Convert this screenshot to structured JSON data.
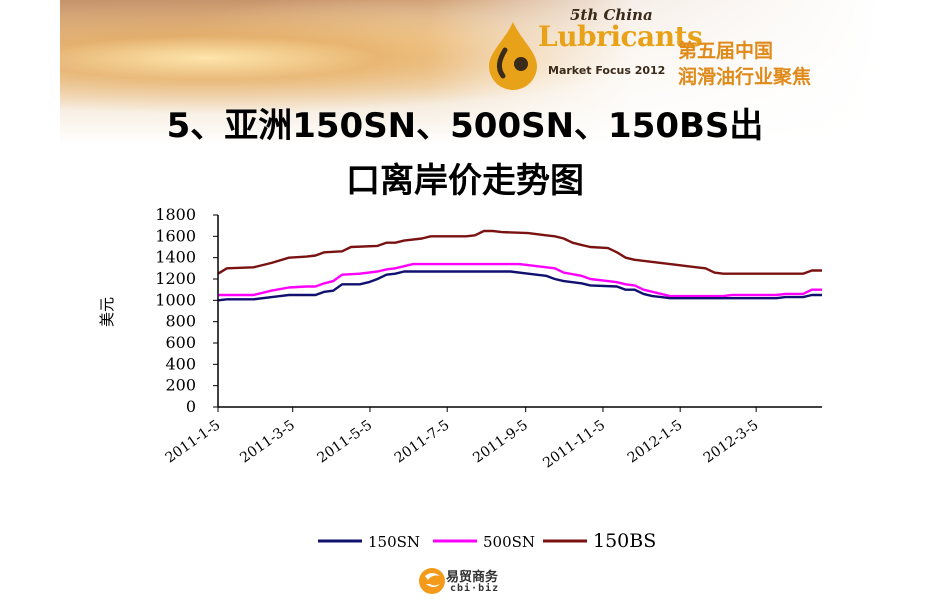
{
  "banner": {
    "logo_line1": "5th China",
    "logo_line2": "Lubricants",
    "logo_line3": "Market Focus 2012",
    "logo_cn1": "第五届中国",
    "logo_cn2": "润滑油行业聚焦"
  },
  "title_line1": "5、亚洲150SN、500SN、150BS出",
  "title_line2": "口离岸价走势图",
  "footer": {
    "cn": "易贸商务",
    "en": "cbi·biz"
  },
  "colors": {
    "150SN": "#10106e",
    "500SN": "#ff00ff",
    "150BS": "#7a1212"
  },
  "chart_data": {
    "type": "line",
    "ylabel": "美元",
    "ylim": [
      0,
      1800
    ],
    "yticks": [
      0,
      200,
      400,
      600,
      800,
      1000,
      1200,
      1400,
      1600,
      1800
    ],
    "x_start": "2011-1-5",
    "x_end": "2012-4-26",
    "xtick_labels": [
      "2011-1-5",
      "2011-3-5",
      "2011-5-5",
      "2011-7-5",
      "2011-9-5",
      "2011-11-5",
      "2012-1-5",
      "2012-3-5"
    ],
    "grid": false,
    "legend_position": "bottom",
    "series": [
      {
        "name": "150SN",
        "points": [
          [
            "2011-1-5",
            1000
          ],
          [
            "2011-1-12",
            1010
          ],
          [
            "2011-2-2",
            1010
          ],
          [
            "2011-2-23",
            1040
          ],
          [
            "2011-3-2",
            1050
          ],
          [
            "2011-3-23",
            1050
          ],
          [
            "2011-3-30",
            1080
          ],
          [
            "2011-4-6",
            1090
          ],
          [
            "2011-4-13",
            1150
          ],
          [
            "2011-4-27",
            1150
          ],
          [
            "2011-5-4",
            1170
          ],
          [
            "2011-5-11",
            1200
          ],
          [
            "2011-5-18",
            1240
          ],
          [
            "2011-5-25",
            1250
          ],
          [
            "2011-6-1",
            1270
          ],
          [
            "2011-8-24",
            1270
          ],
          [
            "2011-9-7",
            1250
          ],
          [
            "2011-9-21",
            1230
          ],
          [
            "2011-9-28",
            1200
          ],
          [
            "2011-10-5",
            1180
          ],
          [
            "2011-10-19",
            1160
          ],
          [
            "2011-10-26",
            1140
          ],
          [
            "2011-11-16",
            1130
          ],
          [
            "2011-11-23",
            1100
          ],
          [
            "2011-11-30",
            1100
          ],
          [
            "2011-12-7",
            1060
          ],
          [
            "2011-12-14",
            1040
          ],
          [
            "2011-12-21",
            1030
          ],
          [
            "2011-12-28",
            1020
          ],
          [
            "2012-3-21",
            1020
          ],
          [
            "2012-3-28",
            1030
          ],
          [
            "2012-4-11",
            1030
          ],
          [
            "2012-4-18",
            1050
          ],
          [
            "2012-4-26",
            1050
          ]
        ]
      },
      {
        "name": "500SN",
        "points": [
          [
            "2011-1-5",
            1050
          ],
          [
            "2011-2-2",
            1050
          ],
          [
            "2011-2-16",
            1090
          ],
          [
            "2011-3-2",
            1120
          ],
          [
            "2011-3-16",
            1130
          ],
          [
            "2011-3-23",
            1130
          ],
          [
            "2011-3-30",
            1160
          ],
          [
            "2011-4-6",
            1180
          ],
          [
            "2011-4-13",
            1240
          ],
          [
            "2011-4-27",
            1250
          ],
          [
            "2011-5-11",
            1270
          ],
          [
            "2011-5-18",
            1290
          ],
          [
            "2011-5-25",
            1300
          ],
          [
            "2011-6-1",
            1320
          ],
          [
            "2011-6-8",
            1340
          ],
          [
            "2011-8-31",
            1340
          ],
          [
            "2011-9-14",
            1320
          ],
          [
            "2011-9-28",
            1300
          ],
          [
            "2011-10-5",
            1260
          ],
          [
            "2011-10-19",
            1230
          ],
          [
            "2011-10-26",
            1200
          ],
          [
            "2011-11-9",
            1180
          ],
          [
            "2011-11-16",
            1170
          ],
          [
            "2011-11-23",
            1150
          ],
          [
            "2011-11-30",
            1140
          ],
          [
            "2011-12-7",
            1100
          ],
          [
            "2011-12-21",
            1060
          ],
          [
            "2011-12-28",
            1040
          ],
          [
            "2012-1-18",
            1040
          ],
          [
            "2012-2-8",
            1040
          ],
          [
            "2012-2-15",
            1050
          ],
          [
            "2012-3-21",
            1050
          ],
          [
            "2012-3-28",
            1060
          ],
          [
            "2012-4-11",
            1060
          ],
          [
            "2012-4-18",
            1100
          ],
          [
            "2012-4-26",
            1100
          ]
        ]
      },
      {
        "name": "150BS",
        "points": [
          [
            "2011-1-5",
            1250
          ],
          [
            "2011-1-12",
            1300
          ],
          [
            "2011-2-2",
            1310
          ],
          [
            "2011-2-16",
            1350
          ],
          [
            "2011-3-2",
            1400
          ],
          [
            "2011-3-16",
            1410
          ],
          [
            "2011-3-23",
            1420
          ],
          [
            "2011-3-30",
            1450
          ],
          [
            "2011-4-13",
            1460
          ],
          [
            "2011-4-20",
            1500
          ],
          [
            "2011-5-11",
            1510
          ],
          [
            "2011-5-18",
            1540
          ],
          [
            "2011-5-25",
            1540
          ],
          [
            "2011-6-1",
            1560
          ],
          [
            "2011-6-15",
            1580
          ],
          [
            "2011-6-22",
            1600
          ],
          [
            "2011-7-20",
            1600
          ],
          [
            "2011-7-27",
            1610
          ],
          [
            "2011-8-3",
            1650
          ],
          [
            "2011-8-10",
            1650
          ],
          [
            "2011-8-17",
            1640
          ],
          [
            "2011-9-7",
            1630
          ],
          [
            "2011-9-21",
            1610
          ],
          [
            "2011-9-28",
            1600
          ],
          [
            "2011-10-5",
            1580
          ],
          [
            "2011-10-12",
            1540
          ],
          [
            "2011-10-19",
            1520
          ],
          [
            "2011-10-26",
            1500
          ],
          [
            "2011-11-9",
            1490
          ],
          [
            "2011-11-16",
            1450
          ],
          [
            "2011-11-23",
            1400
          ],
          [
            "2011-11-30",
            1380
          ],
          [
            "2011-12-14",
            1360
          ],
          [
            "2011-12-28",
            1340
          ],
          [
            "2012-1-18",
            1310
          ],
          [
            "2012-1-25",
            1300
          ],
          [
            "2012-2-1",
            1260
          ],
          [
            "2012-2-8",
            1250
          ],
          [
            "2012-4-11",
            1250
          ],
          [
            "2012-4-18",
            1280
          ],
          [
            "2012-4-26",
            1280
          ]
        ]
      }
    ]
  }
}
